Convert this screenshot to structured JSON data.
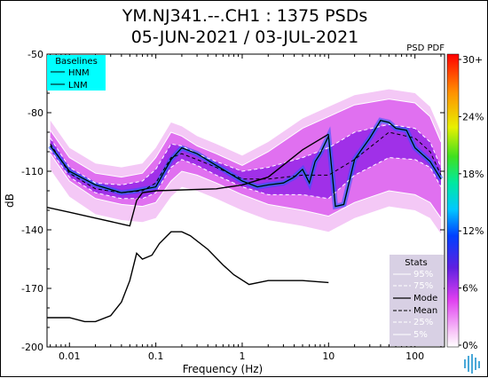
{
  "title_line1": "YM.NJ341.--.CH1 : 1375 PSDs",
  "title_line2": "05-JUN-2021 / 03-JUL-2021",
  "colorbar_label": "PSD PDF",
  "icon": "wave-logo-icon",
  "colors": {
    "hnm_lnm": "#000000",
    "baselines_bg": "#00ffff",
    "stats_bg": "#d8d0e4",
    "percentile_lines": "#ffffff",
    "mode_line": "#000000"
  },
  "chart_data": {
    "type": "heatmap",
    "title": "YM.NJ341.--.CH1 : 1375 PSDs",
    "subtitle": "05-JUN-2021 / 03-JUL-2021",
    "xlabel": "Frequency (Hz)",
    "ylabel": "dB",
    "xscale": "log",
    "xlim": [
      0.0055,
      220
    ],
    "ylim": [
      -200,
      -50
    ],
    "xticks": [
      {
        "value": 0.01,
        "label": "0.01"
      },
      {
        "value": 0.1,
        "label": "0.1"
      },
      {
        "value": 1,
        "label": "1"
      },
      {
        "value": 10,
        "label": "10"
      },
      {
        "value": 100,
        "label": "100"
      }
    ],
    "yticks": [
      {
        "value": -50,
        "label": "-50"
      },
      {
        "value": -80,
        "label": "-80"
      },
      {
        "value": -110,
        "label": "-110"
      },
      {
        "value": -140,
        "label": "-140"
      },
      {
        "value": -170,
        "label": "-170"
      },
      {
        "value": -200,
        "label": "-200"
      }
    ],
    "colorbar": {
      "label": "PSD PDF",
      "ticks": [
        "30+",
        "24%",
        "18%",
        "12%",
        "6%",
        "0%"
      ]
    },
    "baselines_legend": {
      "title": "Baselines",
      "entries": [
        "HNM",
        "LNM"
      ]
    },
    "stats_legend": {
      "title": "Stats",
      "entries": [
        "95%",
        "75%",
        "Mode",
        "Mean",
        "25%",
        "5%"
      ]
    },
    "series": [
      {
        "name": "HNM",
        "x": [
          0.0055,
          0.01,
          0.02,
          0.04,
          0.05,
          0.06,
          0.07,
          0.1,
          0.5,
          1,
          2,
          5,
          10
        ],
        "y": [
          -128.5,
          -131,
          -134,
          -137,
          -138,
          -125,
          -121,
          -120,
          -119,
          -117,
          -113,
          -99,
          -91
        ]
      },
      {
        "name": "LNM",
        "x": [
          0.0055,
          0.01,
          0.015,
          0.02,
          0.03,
          0.04,
          0.05,
          0.06,
          0.07,
          0.09,
          0.11,
          0.15,
          0.2,
          0.25,
          0.4,
          0.6,
          0.8,
          1.2,
          2,
          5,
          10
        ],
        "y": [
          -185,
          -185,
          -187,
          -187,
          -184,
          -177,
          -166,
          -152,
          -155,
          -153,
          -147,
          -141,
          -141,
          -143,
          -150,
          -158,
          -163,
          -168,
          -166,
          -166,
          -167
        ]
      },
      {
        "name": "95%",
        "x": [
          0.006,
          0.01,
          0.02,
          0.04,
          0.07,
          0.1,
          0.15,
          0.2,
          0.3,
          0.5,
          1,
          2,
          5,
          10,
          20,
          50,
          100,
          150,
          200
        ],
        "y": [
          -89,
          -103,
          -111,
          -113,
          -111,
          -103,
          -90,
          -92,
          -97,
          -101,
          -107,
          -100,
          -88,
          -82,
          -76,
          -73,
          -75,
          -82,
          -95
        ]
      },
      {
        "name": "75%",
        "x": [
          0.006,
          0.01,
          0.02,
          0.04,
          0.07,
          0.1,
          0.15,
          0.2,
          0.3,
          0.5,
          1,
          2,
          5,
          10,
          20,
          50,
          100,
          150,
          200
        ],
        "y": [
          -93,
          -108,
          -116,
          -117,
          -115,
          -109,
          -96,
          -97,
          -101,
          -105,
          -110,
          -108,
          -103,
          -98,
          -90,
          -86,
          -88,
          -95,
          -108
        ]
      },
      {
        "name": "Mode",
        "x": [
          0.006,
          0.01,
          0.02,
          0.04,
          0.06,
          0.1,
          0.15,
          0.2,
          0.3,
          0.5,
          1,
          1.5,
          2,
          3,
          4,
          5,
          6,
          7,
          8,
          10,
          12,
          15,
          20,
          30,
          40,
          50,
          60,
          80,
          100,
          150,
          200
        ],
        "y": [
          -97,
          -110,
          -117,
          -121,
          -120,
          -118,
          -104,
          -98,
          -101,
          -107,
          -115,
          -118,
          -117,
          -116,
          -113,
          -109,
          -116,
          -105,
          -101,
          -92,
          -128,
          -127,
          -104,
          -93,
          -84,
          -85,
          -88,
          -89,
          -98,
          -105,
          -114
        ]
      },
      {
        "name": "Mean",
        "x": [
          0.006,
          0.01,
          0.02,
          0.04,
          0.07,
          0.1,
          0.15,
          0.2,
          0.3,
          0.5,
          1,
          2,
          5,
          10,
          20,
          50,
          100,
          150,
          200
        ],
        "y": [
          -96,
          -111,
          -119,
          -121,
          -120,
          -116,
          -103,
          -101,
          -104,
          -108,
          -114,
          -114,
          -112,
          -112,
          -104,
          -90,
          -93,
          -100,
          -112
        ]
      },
      {
        "name": "25%",
        "x": [
          0.006,
          0.01,
          0.02,
          0.04,
          0.07,
          0.1,
          0.15,
          0.2,
          0.3,
          0.5,
          1,
          2,
          5,
          10,
          20,
          50,
          100,
          150,
          200
        ],
        "y": [
          -99,
          -113,
          -121,
          -124,
          -124,
          -121,
          -108,
          -104,
          -107,
          -112,
          -118,
          -122,
          -122,
          -124,
          -112,
          -103,
          -104,
          -108,
          -118
        ]
      },
      {
        "name": "5%",
        "x": [
          0.006,
          0.01,
          0.02,
          0.04,
          0.07,
          0.1,
          0.15,
          0.2,
          0.3,
          0.5,
          1,
          2,
          5,
          10,
          20,
          50,
          100,
          150,
          200
        ],
        "y": [
          -101,
          -115,
          -124,
          -127,
          -128,
          -126,
          -115,
          -110,
          -112,
          -116,
          -122,
          -127,
          -130,
          -133,
          -126,
          -120,
          -122,
          -126,
          -134
        ]
      }
    ]
  }
}
